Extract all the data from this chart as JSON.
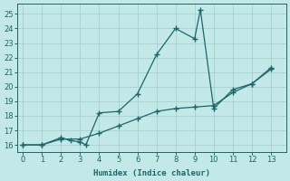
{
  "xlabel": "Humidex (Indice chaleur)",
  "background_color": "#c2e8e8",
  "grid_color": "#aacece",
  "line_color": "#1a6868",
  "line1_x": [
    0,
    1,
    2,
    2.5,
    3,
    3.3,
    4,
    5,
    6,
    7,
    8,
    9,
    9.3,
    10,
    11,
    12,
    13
  ],
  "line1_y": [
    16.0,
    16.0,
    16.5,
    16.3,
    16.2,
    16.0,
    18.2,
    18.3,
    19.5,
    22.2,
    24.0,
    23.3,
    25.3,
    18.5,
    19.8,
    20.2,
    21.3
  ],
  "line2_x": [
    0,
    1,
    2,
    3,
    4,
    5,
    6,
    7,
    8,
    9,
    10,
    11,
    12,
    13
  ],
  "line2_y": [
    16.0,
    16.0,
    16.4,
    16.4,
    16.8,
    17.3,
    17.8,
    18.3,
    18.5,
    18.6,
    18.7,
    19.6,
    20.2,
    21.2
  ],
  "xlim": [
    -0.3,
    13.8
  ],
  "ylim": [
    15.5,
    25.7
  ],
  "yticks": [
    16,
    17,
    18,
    19,
    20,
    21,
    22,
    23,
    24,
    25
  ],
  "xticks": [
    0,
    1,
    2,
    3,
    4,
    5,
    6,
    7,
    8,
    9,
    10,
    11,
    12,
    13
  ]
}
